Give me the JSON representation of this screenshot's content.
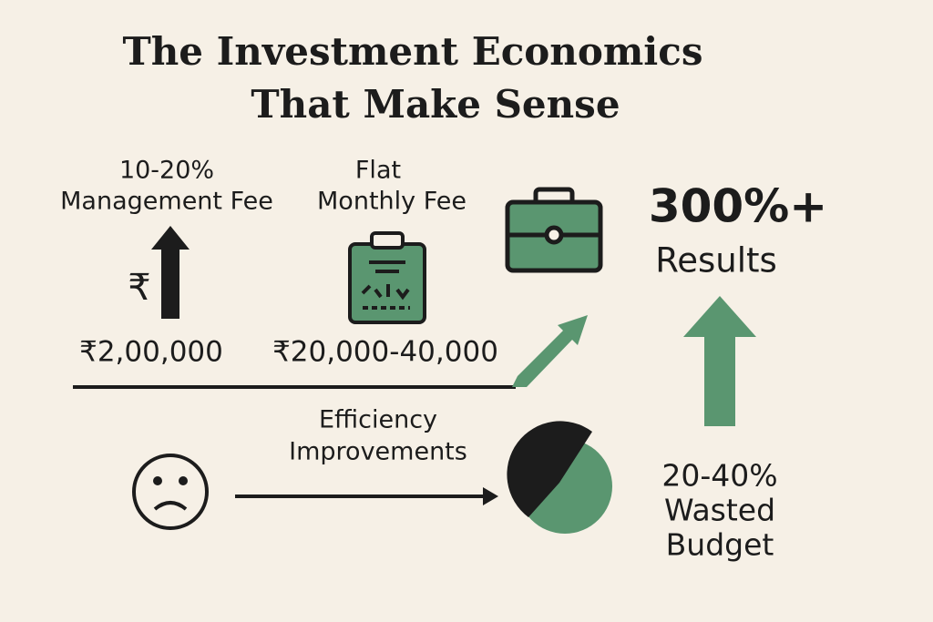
{
  "title": [
    "The Investment Economics",
    "That Make Sense"
  ],
  "traditional": {
    "label": [
      "10-20%",
      "Management Fee"
    ],
    "symbol": "₹",
    "amount": "₹2,00,000"
  },
  "flat": {
    "label": [
      "Flat",
      "Monthly Fee"
    ],
    "amount": "₹20,000-40,000"
  },
  "results": {
    "value": "300%+",
    "label": "Results"
  },
  "efficiency": {
    "label": [
      "Efficiency",
      "Improvements"
    ]
  },
  "waste": {
    "label": [
      "20-40%",
      "Wasted",
      "Budget"
    ]
  }
}
